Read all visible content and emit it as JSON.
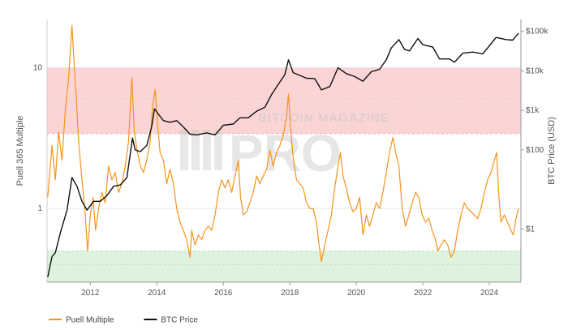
{
  "chart_data": {
    "type": "line",
    "title": "",
    "xlabel": "",
    "ylabel_left": "Puell 365 Multiple",
    "ylabel_right": "BTC Price (USD)",
    "x_range": [
      2010.7,
      2024.95
    ],
    "x_ticks": [
      {
        "value": 2012,
        "label": "2012"
      },
      {
        "value": 2014,
        "label": "2014"
      },
      {
        "value": 2016,
        "label": "2016"
      },
      {
        "value": 2018,
        "label": "2018"
      },
      {
        "value": 2020,
        "label": "2020"
      },
      {
        "value": 2022,
        "label": "2022"
      },
      {
        "value": 2024,
        "label": "2024"
      }
    ],
    "y_left": {
      "scale": "log",
      "range": [
        0.3,
        22
      ],
      "ticks": [
        {
          "value": 1,
          "label": "1"
        },
        {
          "value": 10,
          "label": "10"
        }
      ]
    },
    "y_right": {
      "scale": "log",
      "range": [
        0.045,
        200000
      ],
      "ticks": [
        {
          "value": 1,
          "label": "$1"
        },
        {
          "value": 100,
          "label": "$100"
        },
        {
          "value": 1000,
          "label": "$1k"
        },
        {
          "value": 10000,
          "label": "$10k"
        },
        {
          "value": 100000,
          "label": "$100k"
        }
      ]
    },
    "bands": [
      {
        "from": 3.4,
        "to": 10,
        "color": "#fbd5d5",
        "border": "#e9a0a0"
      },
      {
        "from": 0.3,
        "to": 0.5,
        "color": "#ddf3dd",
        "border": "#a9d9a9"
      }
    ],
    "band_guides": [
      6,
      0.4
    ],
    "watermark": {
      "line1": "BITCOIN MAGAZINE",
      "line2": "PRO"
    },
    "series": [
      {
        "name": "Puell Multiple",
        "axis": "left",
        "color": "#f7931a",
        "points": [
          [
            2010.72,
            1.2
          ],
          [
            2010.85,
            2.8
          ],
          [
            2010.95,
            1.6
          ],
          [
            2011.05,
            3.5
          ],
          [
            2011.15,
            2.2
          ],
          [
            2011.25,
            5.0
          ],
          [
            2011.35,
            8.5
          ],
          [
            2011.45,
            20.0
          ],
          [
            2011.5,
            12.0
          ],
          [
            2011.58,
            6.0
          ],
          [
            2011.65,
            3.0
          ],
          [
            2011.75,
            1.6
          ],
          [
            2011.85,
            0.9
          ],
          [
            2011.92,
            0.5
          ],
          [
            2012.0,
            0.9
          ],
          [
            2012.08,
            1.2
          ],
          [
            2012.16,
            0.7
          ],
          [
            2012.25,
            1.0
          ],
          [
            2012.35,
            1.3
          ],
          [
            2012.45,
            1.1
          ],
          [
            2012.55,
            2.0
          ],
          [
            2012.65,
            1.6
          ],
          [
            2012.75,
            1.8
          ],
          [
            2012.85,
            1.3
          ],
          [
            2012.95,
            1.5
          ],
          [
            2013.05,
            2.0
          ],
          [
            2013.15,
            3.0
          ],
          [
            2013.25,
            8.5
          ],
          [
            2013.32,
            3.5
          ],
          [
            2013.42,
            2.5
          ],
          [
            2013.5,
            2.0
          ],
          [
            2013.6,
            1.8
          ],
          [
            2013.7,
            2.2
          ],
          [
            2013.8,
            3.0
          ],
          [
            2013.88,
            5.5
          ],
          [
            2013.95,
            7.0
          ],
          [
            2014.02,
            4.0
          ],
          [
            2014.1,
            2.5
          ],
          [
            2014.2,
            2.2
          ],
          [
            2014.3,
            1.5
          ],
          [
            2014.4,
            1.9
          ],
          [
            2014.5,
            1.5
          ],
          [
            2014.6,
            1.0
          ],
          [
            2014.7,
            0.8
          ],
          [
            2014.8,
            0.7
          ],
          [
            2014.9,
            0.6
          ],
          [
            2015.0,
            0.45
          ],
          [
            2015.05,
            0.7
          ],
          [
            2015.15,
            0.55
          ],
          [
            2015.25,
            0.65
          ],
          [
            2015.35,
            0.6
          ],
          [
            2015.45,
            0.7
          ],
          [
            2015.55,
            0.75
          ],
          [
            2015.65,
            0.7
          ],
          [
            2015.75,
            0.9
          ],
          [
            2015.85,
            1.3
          ],
          [
            2015.95,
            1.6
          ],
          [
            2016.05,
            1.4
          ],
          [
            2016.15,
            1.6
          ],
          [
            2016.25,
            1.3
          ],
          [
            2016.35,
            1.7
          ],
          [
            2016.45,
            2.2
          ],
          [
            2016.52,
            1.2
          ],
          [
            2016.6,
            0.9
          ],
          [
            2016.7,
            0.95
          ],
          [
            2016.8,
            1.1
          ],
          [
            2016.9,
            1.3
          ],
          [
            2017.0,
            1.7
          ],
          [
            2017.1,
            1.5
          ],
          [
            2017.2,
            1.7
          ],
          [
            2017.3,
            1.9
          ],
          [
            2017.4,
            2.6
          ],
          [
            2017.5,
            2.0
          ],
          [
            2017.6,
            2.5
          ],
          [
            2017.7,
            2.8
          ],
          [
            2017.8,
            3.3
          ],
          [
            2017.9,
            4.5
          ],
          [
            2017.96,
            6.5
          ],
          [
            2018.02,
            3.8
          ],
          [
            2018.1,
            2.3
          ],
          [
            2018.2,
            1.6
          ],
          [
            2018.3,
            1.5
          ],
          [
            2018.4,
            1.4
          ],
          [
            2018.5,
            1.1
          ],
          [
            2018.6,
            1.0
          ],
          [
            2018.7,
            1.0
          ],
          [
            2018.8,
            0.8
          ],
          [
            2018.88,
            0.55
          ],
          [
            2018.95,
            0.42
          ],
          [
            2019.05,
            0.55
          ],
          [
            2019.15,
            0.7
          ],
          [
            2019.25,
            0.9
          ],
          [
            2019.35,
            1.4
          ],
          [
            2019.45,
            2.0
          ],
          [
            2019.52,
            2.5
          ],
          [
            2019.6,
            1.7
          ],
          [
            2019.7,
            1.4
          ],
          [
            2019.8,
            1.1
          ],
          [
            2019.9,
            0.95
          ],
          [
            2020.0,
            1.0
          ],
          [
            2020.1,
            1.2
          ],
          [
            2020.2,
            0.65
          ],
          [
            2020.3,
            0.9
          ],
          [
            2020.4,
            0.75
          ],
          [
            2020.5,
            0.9
          ],
          [
            2020.6,
            1.1
          ],
          [
            2020.7,
            1.0
          ],
          [
            2020.8,
            1.3
          ],
          [
            2020.9,
            1.8
          ],
          [
            2021.0,
            2.5
          ],
          [
            2021.1,
            3.2
          ],
          [
            2021.18,
            2.5
          ],
          [
            2021.28,
            2.0
          ],
          [
            2021.38,
            1.0
          ],
          [
            2021.48,
            0.75
          ],
          [
            2021.58,
            0.9
          ],
          [
            2021.68,
            1.1
          ],
          [
            2021.78,
            1.3
          ],
          [
            2021.88,
            1.2
          ],
          [
            2021.98,
            0.9
          ],
          [
            2022.08,
            0.8
          ],
          [
            2022.18,
            0.85
          ],
          [
            2022.28,
            0.7
          ],
          [
            2022.38,
            0.6
          ],
          [
            2022.45,
            0.5
          ],
          [
            2022.55,
            0.55
          ],
          [
            2022.65,
            0.6
          ],
          [
            2022.75,
            0.55
          ],
          [
            2022.85,
            0.45
          ],
          [
            2022.95,
            0.5
          ],
          [
            2023.05,
            0.7
          ],
          [
            2023.15,
            0.9
          ],
          [
            2023.25,
            1.1
          ],
          [
            2023.35,
            1.0
          ],
          [
            2023.45,
            0.95
          ],
          [
            2023.55,
            0.9
          ],
          [
            2023.65,
            0.85
          ],
          [
            2023.75,
            1.0
          ],
          [
            2023.85,
            1.3
          ],
          [
            2023.95,
            1.6
          ],
          [
            2024.05,
            1.8
          ],
          [
            2024.15,
            2.2
          ],
          [
            2024.22,
            2.5
          ],
          [
            2024.28,
            1.3
          ],
          [
            2024.35,
            0.8
          ],
          [
            2024.45,
            0.9
          ],
          [
            2024.55,
            0.8
          ],
          [
            2024.65,
            0.7
          ],
          [
            2024.72,
            0.65
          ],
          [
            2024.8,
            0.85
          ],
          [
            2024.88,
            1.0
          ]
        ]
      },
      {
        "name": "BTC Price",
        "axis": "right",
        "color": "#111111",
        "points": [
          [
            2010.72,
            0.06
          ],
          [
            2010.85,
            0.2
          ],
          [
            2010.95,
            0.25
          ],
          [
            2011.1,
            0.8
          ],
          [
            2011.3,
            3.0
          ],
          [
            2011.45,
            20.0
          ],
          [
            2011.6,
            12.0
          ],
          [
            2011.75,
            5.0
          ],
          [
            2011.9,
            3.0
          ],
          [
            2012.1,
            5.0
          ],
          [
            2012.3,
            5.0
          ],
          [
            2012.5,
            7.0
          ],
          [
            2012.7,
            12.0
          ],
          [
            2012.9,
            13.0
          ],
          [
            2013.1,
            20.0
          ],
          [
            2013.27,
            200.0
          ],
          [
            2013.35,
            100.0
          ],
          [
            2013.5,
            90.0
          ],
          [
            2013.7,
            130.0
          ],
          [
            2013.85,
            400.0
          ],
          [
            2013.93,
            1100.0
          ],
          [
            2014.05,
            800.0
          ],
          [
            2014.2,
            550.0
          ],
          [
            2014.4,
            500.0
          ],
          [
            2014.6,
            550.0
          ],
          [
            2014.8,
            380.0
          ],
          [
            2015.0,
            250.0
          ],
          [
            2015.2,
            240.0
          ],
          [
            2015.5,
            270.0
          ],
          [
            2015.75,
            240.0
          ],
          [
            2016.0,
            420.0
          ],
          [
            2016.3,
            450.0
          ],
          [
            2016.5,
            650.0
          ],
          [
            2016.75,
            650.0
          ],
          [
            2017.0,
            950.0
          ],
          [
            2017.25,
            1200.0
          ],
          [
            2017.45,
            2500.0
          ],
          [
            2017.65,
            4500.0
          ],
          [
            2017.85,
            8000.0
          ],
          [
            2017.96,
            19000.0
          ],
          [
            2018.1,
            9000.0
          ],
          [
            2018.25,
            8000.0
          ],
          [
            2018.5,
            6500.0
          ],
          [
            2018.75,
            6400.0
          ],
          [
            2018.95,
            3300.0
          ],
          [
            2019.2,
            4000.0
          ],
          [
            2019.45,
            12000.0
          ],
          [
            2019.7,
            8500.0
          ],
          [
            2019.95,
            7200.0
          ],
          [
            2020.2,
            5500.0
          ],
          [
            2020.45,
            9500.0
          ],
          [
            2020.7,
            11000.0
          ],
          [
            2020.9,
            19000.0
          ],
          [
            2021.05,
            38000.0
          ],
          [
            2021.28,
            62000.0
          ],
          [
            2021.45,
            35000.0
          ],
          [
            2021.6,
            32000.0
          ],
          [
            2021.85,
            66000.0
          ],
          [
            2022.0,
            46000.0
          ],
          [
            2022.3,
            40000.0
          ],
          [
            2022.5,
            20000.0
          ],
          [
            2022.8,
            20000.0
          ],
          [
            2022.95,
            16500.0
          ],
          [
            2023.2,
            28000.0
          ],
          [
            2023.5,
            30000.0
          ],
          [
            2023.8,
            27000.0
          ],
          [
            2024.0,
            43000.0
          ],
          [
            2024.2,
            70000.0
          ],
          [
            2024.5,
            62000.0
          ],
          [
            2024.7,
            60000.0
          ],
          [
            2024.88,
            90000.0
          ]
        ]
      }
    ],
    "legend": {
      "placement": "bottom-left"
    }
  }
}
